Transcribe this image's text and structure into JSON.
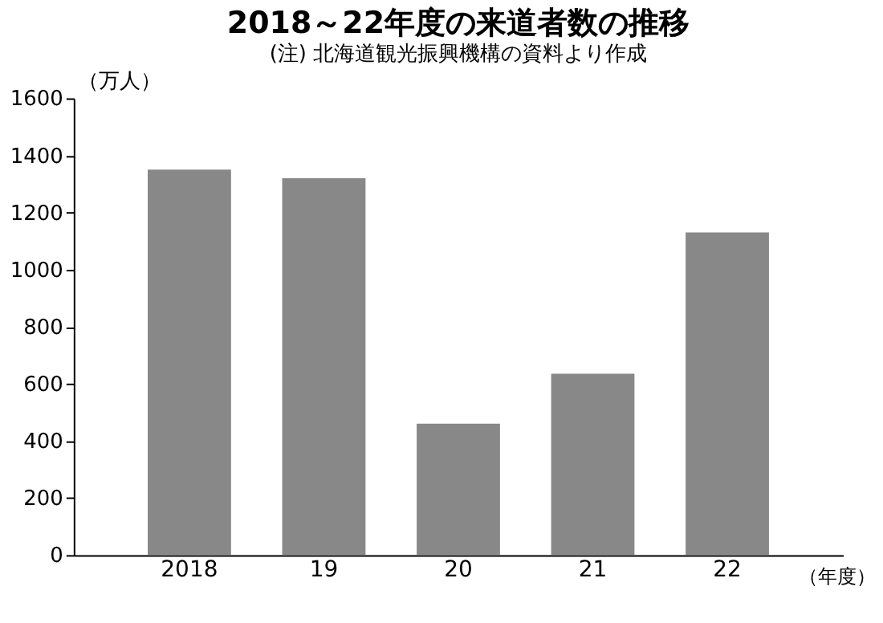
{
  "chart_data": {
    "type": "bar",
    "title": "2018～22年度の来道者数の推移",
    "subtitle": "(注) 北海道観光振興機構の資料より作成",
    "ylabel": "（万人）",
    "xlabel": "（年度）",
    "categories": [
      "2018",
      "19",
      "20",
      "21",
      "22"
    ],
    "values": [
      1350,
      1320,
      460,
      635,
      1130
    ],
    "color": "#888888",
    "ylim": [
      0,
      1600
    ],
    "yticks": [
      0,
      200,
      400,
      600,
      800,
      1000,
      1200,
      1400,
      1600
    ],
    "grid": false
  }
}
